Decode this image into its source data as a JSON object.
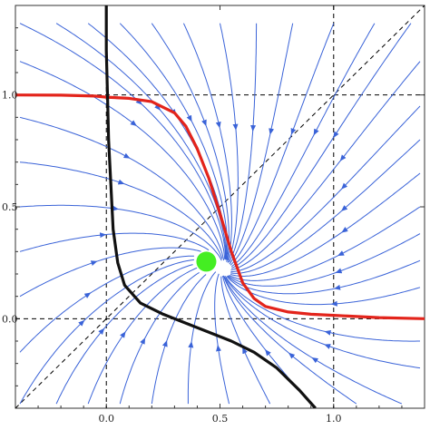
{
  "chart_data": {
    "type": "streamplot",
    "title": "",
    "xlabel": "",
    "ylabel": "",
    "xlim": [
      -0.4,
      1.4
    ],
    "ylim": [
      -0.4,
      1.4
    ],
    "x_ticks": [
      {
        "value": 0.0,
        "label": "0.0"
      },
      {
        "value": 0.5,
        "label": "0.5"
      },
      {
        "value": 1.0,
        "label": "1.0"
      }
    ],
    "y_ticks": [
      {
        "value": 0.0,
        "label": "0.0"
      },
      {
        "value": 0.5,
        "label": "0.5"
      },
      {
        "value": 1.0,
        "label": "1.0"
      }
    ],
    "colors": {
      "stream": "#3a63d8",
      "red_curve": "#e3241b",
      "black_curve": "#111111",
      "point": "#44ee22",
      "guides": "#000000"
    },
    "dashed_lines": {
      "vertical_x": [
        0,
        1
      ],
      "horizontal_y": [
        0,
        1
      ],
      "diagonal": "y = x"
    },
    "curves": [
      {
        "color": "red",
        "points": [
          [
            -0.4,
            1.0
          ],
          [
            -0.2,
            0.999
          ],
          [
            -0.05,
            0.995
          ],
          [
            0.0,
            0.99
          ],
          [
            0.1,
            0.985
          ],
          [
            0.2,
            0.97
          ],
          [
            0.3,
            0.92
          ],
          [
            0.35,
            0.86
          ],
          [
            0.4,
            0.76
          ],
          [
            0.45,
            0.63
          ],
          [
            0.5,
            0.47
          ],
          [
            0.55,
            0.3
          ],
          [
            0.6,
            0.16
          ],
          [
            0.65,
            0.09
          ],
          [
            0.7,
            0.055
          ],
          [
            0.8,
            0.03
          ],
          [
            0.9,
            0.02
          ],
          [
            1.0,
            0.015
          ],
          [
            1.2,
            0.005
          ],
          [
            1.4,
            0.0
          ]
        ]
      },
      {
        "color": "black",
        "points": [
          [
            0.0,
            1.4
          ],
          [
            0.0,
            1.2
          ],
          [
            0.005,
            1.0
          ],
          [
            0.01,
            0.8
          ],
          [
            0.02,
            0.6
          ],
          [
            0.03,
            0.4
          ],
          [
            0.05,
            0.25
          ],
          [
            0.08,
            0.15
          ],
          [
            0.15,
            0.07
          ],
          [
            0.25,
            0.02
          ],
          [
            0.35,
            -0.02
          ],
          [
            0.45,
            -0.06
          ],
          [
            0.55,
            -0.1
          ],
          [
            0.65,
            -0.15
          ],
          [
            0.75,
            -0.22
          ],
          [
            0.85,
            -0.32
          ],
          [
            0.92,
            -0.4
          ]
        ]
      }
    ],
    "points": [
      {
        "x": 0.44,
        "y": 0.255
      }
    ],
    "stream_seeds": [
      [
        -0.38,
        1.32
      ],
      [
        -0.22,
        1.32
      ],
      [
        -0.08,
        1.32
      ],
      [
        0.06,
        1.32
      ],
      [
        0.2,
        1.32
      ],
      [
        0.34,
        1.32
      ],
      [
        0.5,
        1.32
      ],
      [
        0.66,
        1.32
      ],
      [
        0.82,
        1.32
      ],
      [
        1.0,
        1.32
      ],
      [
        1.18,
        1.32
      ],
      [
        1.34,
        1.32
      ],
      [
        -0.38,
        -0.38
      ],
      [
        -0.22,
        -0.38
      ],
      [
        -0.08,
        -0.38
      ],
      [
        0.06,
        -0.38
      ],
      [
        0.2,
        -0.38
      ],
      [
        0.36,
        -0.38
      ],
      [
        0.54,
        -0.38
      ],
      [
        0.72,
        -0.38
      ],
      [
        0.9,
        -0.38
      ],
      [
        1.1,
        -0.38
      ],
      [
        1.3,
        -0.38
      ],
      [
        -0.38,
        1.15
      ],
      [
        -0.38,
        0.9
      ],
      [
        -0.38,
        0.7
      ],
      [
        -0.38,
        0.5
      ],
      [
        -0.38,
        0.3
      ],
      [
        -0.38,
        0.1
      ],
      [
        -0.38,
        -0.15
      ],
      [
        1.38,
        1.15
      ],
      [
        1.38,
        0.95
      ],
      [
        1.38,
        0.8
      ],
      [
        1.38,
        0.65
      ],
      [
        1.38,
        0.5
      ],
      [
        1.38,
        0.38
      ],
      [
        1.38,
        0.26
      ],
      [
        1.38,
        0.14
      ],
      [
        1.38,
        -0.1
      ],
      [
        1.38,
        -0.22
      ]
    ]
  }
}
